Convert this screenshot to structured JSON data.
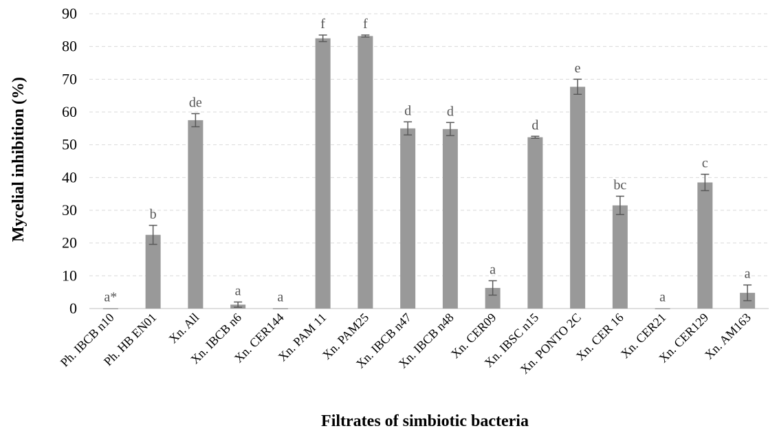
{
  "chart_data": {
    "type": "bar",
    "title": "",
    "xlabel": "Filtrates of simbiotic bacteria",
    "ylabel": "Mycelial inhibition (%)",
    "ylim": [
      0,
      90
    ],
    "yticks": [
      0,
      10,
      20,
      30,
      40,
      50,
      60,
      70,
      80,
      90
    ],
    "grid": "horizontal dashed",
    "bar_color": "#999999",
    "error_color": "#595959",
    "categories": [
      "Ph. IBCB n10",
      "Ph. HB EN01",
      "Xn. All",
      "Xn. IBCB n6",
      "Xn. CER144",
      "Xn. PAM 11",
      "Xn. PAM25",
      "Xn. IBCB n47",
      "Xn. IBCB n48",
      "Xn. CER09",
      "Xn. IBSC n15",
      "Xn. PONTO 2C",
      "Xn. CER 16",
      "Xn. CER21",
      "Xn. CER129",
      "Xn. AM163"
    ],
    "values": [
      0.1,
      22.5,
      57.5,
      1.2,
      0.1,
      82.5,
      83.2,
      55.0,
      54.8,
      6.3,
      52.3,
      67.7,
      31.5,
      0.1,
      38.5,
      4.8
    ],
    "errors": [
      0,
      2.9,
      2.0,
      0.8,
      0,
      1.0,
      0.3,
      2.0,
      2.0,
      2.2,
      0.3,
      2.3,
      2.8,
      0,
      2.5,
      2.4
    ],
    "letters": [
      "a*",
      "b",
      "de",
      "a",
      "a",
      "f",
      "f",
      "d",
      "d",
      "a",
      "d",
      "e",
      "bc",
      "a",
      "c",
      "a"
    ]
  }
}
